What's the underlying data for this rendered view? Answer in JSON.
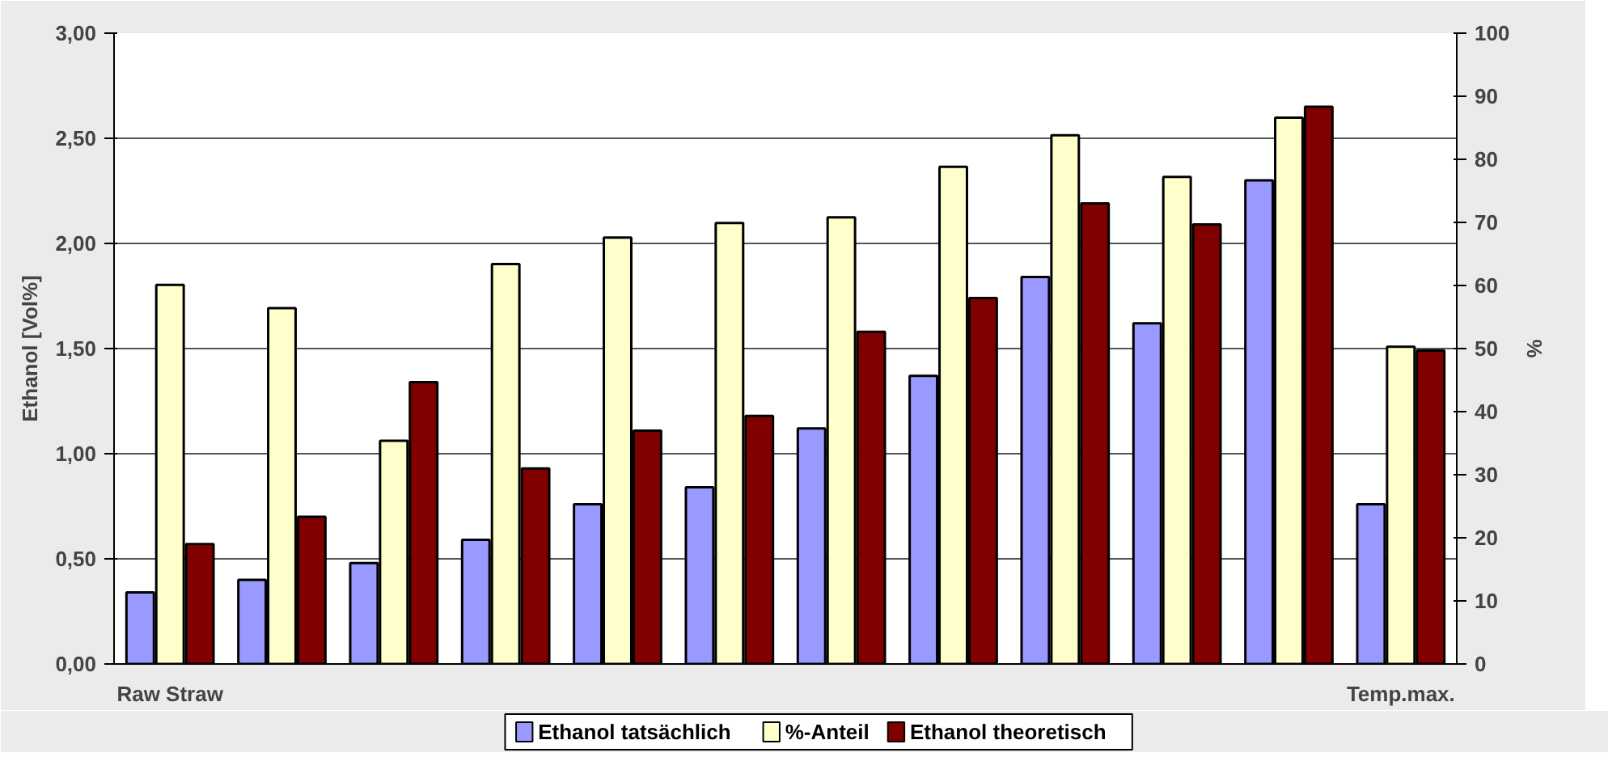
{
  "chart_data": {
    "type": "bar",
    "ylabel": "Ethanol [Vol%]",
    "y2label": "%",
    "categories": [
      "Raw Straw",
      null,
      null,
      null,
      null,
      null,
      null,
      null,
      null,
      null,
      null,
      "Temp.max."
    ],
    "series": [
      {
        "name": "Ethanol tatsächlich",
        "color": "#9999ff",
        "values": [
          0.34,
          0.4,
          0.48,
          0.59,
          0.76,
          0.84,
          1.12,
          1.37,
          1.84,
          1.62,
          2.3,
          0.76
        ]
      },
      {
        "name": "%-Anteil",
        "color": "#ffffcc",
        "axis": "y2",
        "values": [
          60.1,
          56.4,
          35.4,
          63.4,
          67.6,
          69.9,
          70.8,
          78.8,
          83.8,
          77.2,
          86.6,
          50.3
        ]
      },
      {
        "name": "Ethanol theoretisch",
        "color": "#800000",
        "values": [
          0.57,
          0.7,
          1.34,
          0.93,
          1.11,
          1.18,
          1.58,
          1.74,
          2.19,
          2.09,
          2.65,
          1.49
        ]
      }
    ],
    "ylim": [
      0,
      3
    ],
    "yticks": [
      {
        "value": 0,
        "label": "0,00"
      },
      {
        "value": 0.5,
        "label": "0,50"
      },
      {
        "value": 1,
        "label": "1,00"
      },
      {
        "value": 1.5,
        "label": "1,50"
      },
      {
        "value": 2,
        "label": "2,00"
      },
      {
        "value": 2.5,
        "label": "2,50"
      },
      {
        "value": 3,
        "label": "3,00"
      }
    ],
    "y2lim": [
      0,
      100
    ],
    "y2ticks": [
      0,
      10,
      20,
      30,
      40,
      50,
      60,
      70,
      80,
      90,
      100
    ],
    "grid": "y",
    "legend": "bottom"
  }
}
